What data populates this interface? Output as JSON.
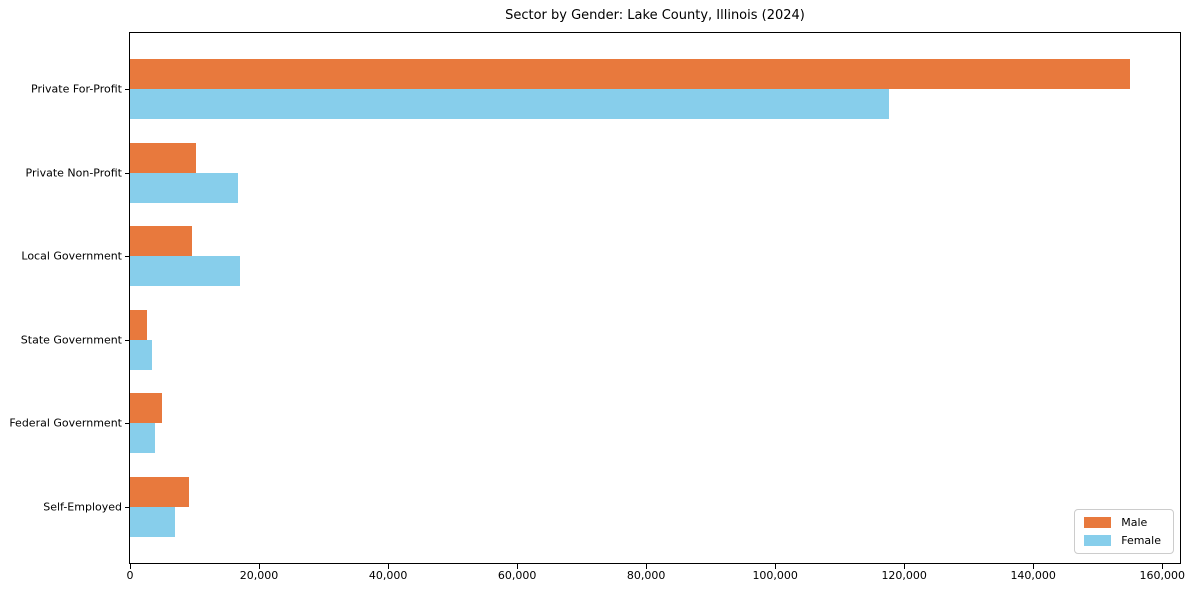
{
  "chart_data": {
    "type": "bar",
    "orientation": "horizontal",
    "title": "Sector by Gender: Lake County, Illinois (2024)",
    "categories": [
      "Private For-Profit",
      "Private Non-Profit",
      "Local Government",
      "State Government",
      "Federal Government",
      "Self-Employed"
    ],
    "series": [
      {
        "name": "Male",
        "color": "#e8793d",
        "values": [
          155000,
          10200,
          9600,
          2700,
          5000,
          9100
        ]
      },
      {
        "name": "Female",
        "color": "#87ceeb",
        "values": [
          117700,
          16700,
          17000,
          3400,
          3900,
          6900
        ]
      }
    ],
    "xlabel": "",
    "ylabel": "",
    "xlim": [
      0,
      162750
    ],
    "x_ticks": [
      0,
      20000,
      40000,
      60000,
      80000,
      100000,
      120000,
      140000,
      160000
    ],
    "x_tick_labels": [
      "0",
      "20,000",
      "40,000",
      "60,000",
      "80,000",
      "100,000",
      "120,000",
      "140,000",
      "160,000"
    ],
    "grid": false,
    "legend": {
      "position": "lower right",
      "entries": [
        "Male",
        "Female"
      ]
    }
  }
}
